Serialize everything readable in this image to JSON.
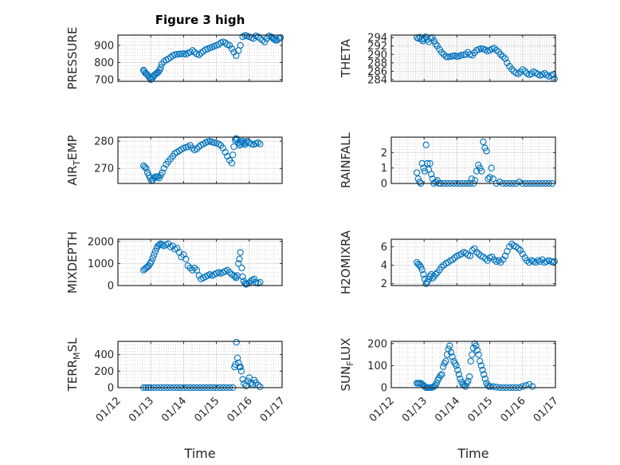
{
  "chart_data": {
    "type": "scatter",
    "title": "Figure 3 high",
    "marker_color": "#0072bd",
    "x_tick_labels": [
      "01/12",
      "01/13",
      "01/14",
      "01/15",
      "01/16",
      "01/17"
    ],
    "x_label": "Time",
    "panels": [
      {
        "ylabel": "PRESSURE",
        "ylim": [
          690,
          960
        ],
        "yticks": [
          700,
          800,
          900
        ],
        "x": [
          0.78,
          0.8,
          0.83,
          0.86,
          0.89,
          0.93,
          0.97,
          1.0,
          1.03,
          1.07,
          1.1,
          1.13,
          1.17,
          1.2,
          1.23,
          1.27,
          1.3,
          1.33,
          1.4,
          1.47,
          1.53,
          1.6,
          1.67,
          1.73,
          1.8,
          1.87,
          1.93,
          2.0,
          2.07,
          2.13,
          2.2,
          2.27,
          2.33,
          2.4,
          2.47,
          2.53,
          2.6,
          2.67,
          2.73,
          2.8,
          2.87,
          2.93,
          3.0,
          3.07,
          3.13,
          3.2,
          3.27,
          3.33,
          3.4,
          3.47,
          3.53,
          3.6,
          3.67,
          3.73,
          3.8,
          3.87,
          3.93,
          4.0,
          4.07,
          4.13,
          4.2,
          4.27,
          4.33,
          4.4,
          4.47,
          4.53,
          4.6,
          4.67,
          4.7,
          4.73,
          4.76,
          4.8,
          4.85,
          4.9,
          4.95
        ],
        "y": [
          755,
          750,
          740,
          735,
          730,
          720,
          710,
          700,
          705,
          715,
          725,
          730,
          735,
          740,
          745,
          755,
          770,
          790,
          805,
          815,
          820,
          830,
          840,
          845,
          848,
          850,
          850,
          852,
          848,
          855,
          860,
          870,
          860,
          850,
          845,
          855,
          865,
          875,
          880,
          885,
          890,
          895,
          900,
          905,
          915,
          920,
          915,
          905,
          900,
          880,
          860,
          840,
          870,
          900,
          950,
          958,
          955,
          950,
          945,
          940,
          955,
          950,
          940,
          930,
          920,
          940,
          955,
          950,
          945,
          940,
          935,
          930,
          930,
          940,
          945
        ]
      },
      {
        "ylabel": "THETA",
        "ylim": [
          283.6,
          294.6
        ],
        "yticks": [
          284,
          286,
          288,
          290,
          292,
          294
        ],
        "x": [
          0.78,
          0.83,
          0.87,
          0.92,
          0.96,
          1.0,
          1.05,
          1.1,
          1.15,
          1.2,
          1.25,
          1.3,
          1.35,
          1.4,
          1.47,
          1.53,
          1.6,
          1.67,
          1.73,
          1.8,
          1.87,
          1.93,
          2.0,
          2.07,
          2.13,
          2.2,
          2.27,
          2.33,
          2.4,
          2.47,
          2.53,
          2.6,
          2.67,
          2.73,
          2.8,
          2.87,
          2.93,
          3.0,
          3.07,
          3.13,
          3.2,
          3.27,
          3.33,
          3.4,
          3.47,
          3.53,
          3.6,
          3.67,
          3.73,
          3.8,
          3.87,
          3.93,
          4.0,
          4.07,
          4.13,
          4.2,
          4.27,
          4.33,
          4.4,
          4.47,
          4.53,
          4.6,
          4.67,
          4.73,
          4.8,
          4.87,
          4.93,
          4.97
        ],
        "y": [
          294.0,
          293.8,
          294.1,
          293.6,
          293.2,
          293.7,
          294.2,
          293.5,
          293.0,
          293.8,
          294.0,
          293.2,
          292.5,
          292.0,
          291.2,
          290.5,
          290.0,
          289.5,
          289.4,
          289.5,
          289.6,
          289.7,
          289.5,
          289.6,
          289.8,
          289.9,
          290.0,
          290.5,
          290.0,
          289.8,
          290.4,
          291.0,
          291.2,
          291.4,
          291.3,
          291.1,
          290.8,
          291.0,
          291.3,
          291.5,
          291.0,
          290.6,
          290.0,
          289.5,
          289.0,
          288.0,
          287.2,
          286.5,
          286.0,
          285.6,
          285.4,
          285.8,
          286.4,
          286.0,
          285.5,
          285.2,
          285.4,
          285.9,
          285.6,
          285.3,
          285.0,
          285.2,
          285.5,
          285.1,
          284.8,
          285.0,
          285.2,
          284.2
        ]
      },
      {
        "ylabel": "AIR_TEMP",
        "ylim": [
          264.5,
          281.5
        ],
        "yticks": [
          270,
          280
        ],
        "x": [
          0.78,
          0.82,
          0.86,
          0.9,
          0.94,
          0.98,
          1.02,
          1.06,
          1.1,
          1.14,
          1.18,
          1.22,
          1.26,
          1.3,
          1.35,
          1.4,
          1.47,
          1.53,
          1.6,
          1.67,
          1.73,
          1.8,
          1.87,
          1.93,
          2.0,
          2.07,
          2.13,
          2.2,
          2.27,
          2.33,
          2.4,
          2.47,
          2.53,
          2.6,
          2.67,
          2.73,
          2.8,
          2.87,
          2.93,
          3.0,
          3.07,
          3.13,
          3.2,
          3.27,
          3.33,
          3.4,
          3.47,
          3.5,
          3.53,
          3.57,
          3.6,
          3.63,
          3.67,
          3.7,
          3.73,
          3.77,
          3.8,
          3.83,
          3.87,
          3.9,
          3.93,
          4.0,
          4.07,
          4.13,
          4.2,
          4.27,
          4.33
        ],
        "y": [
          271.0,
          270.5,
          270.0,
          268.5,
          267.5,
          266.5,
          265.5,
          265.8,
          266.5,
          267.0,
          266.8,
          267.0,
          266.5,
          267.5,
          268.5,
          270.0,
          271.5,
          272.5,
          273.5,
          274.5,
          275.5,
          276.0,
          276.5,
          277.0,
          277.5,
          277.8,
          278.0,
          278.5,
          277.5,
          276.8,
          277.2,
          278.0,
          278.6,
          279.0,
          279.5,
          279.8,
          280.0,
          279.7,
          279.5,
          279.3,
          279.0,
          278.5,
          277.5,
          276.0,
          274.5,
          273.0,
          272.0,
          275.0,
          278.0,
          280.5,
          281.0,
          280.8,
          279.5,
          278.5,
          279.0,
          279.6,
          280.0,
          279.2,
          278.8,
          279.5,
          280.0,
          279.5,
          279.0,
          278.8,
          279.2,
          279.5,
          279.0
        ]
      },
      {
        "ylabel": "RAINFALL",
        "ylim": [
          0,
          3
        ],
        "yticks": [
          0,
          1,
          2
        ],
        "x": [
          0.78,
          0.82,
          0.86,
          0.9,
          0.94,
          0.98,
          1.02,
          1.06,
          1.1,
          1.14,
          1.18,
          1.22,
          1.26,
          1.3,
          1.35,
          1.4,
          1.45,
          1.5,
          1.6,
          1.7,
          1.8,
          1.9,
          2.0,
          2.1,
          2.2,
          2.3,
          2.4,
          2.45,
          2.5,
          2.55,
          2.6,
          2.65,
          2.7,
          2.75,
          2.8,
          2.85,
          2.9,
          2.95,
          3.0,
          3.05,
          3.1,
          3.2,
          3.3,
          3.4,
          3.5,
          3.6,
          3.7,
          3.8,
          3.9,
          4.0,
          4.1,
          4.2,
          4.3,
          4.4,
          4.5,
          4.6,
          4.7,
          4.8,
          4.9
        ],
        "y": [
          0.7,
          0.3,
          0.1,
          0,
          1.3,
          1.0,
          0.8,
          2.5,
          1.3,
          0.9,
          1.3,
          0.6,
          0.3,
          0,
          0.1,
          0.2,
          0,
          0,
          0,
          0,
          0,
          0,
          0,
          0,
          0,
          0,
          0,
          0.3,
          0,
          0.2,
          0.8,
          1.2,
          1.0,
          0.8,
          2.7,
          2.3,
          2.1,
          0.3,
          0.4,
          1.0,
          0.3,
          0,
          0.1,
          0,
          0,
          0,
          0,
          0,
          0.1,
          0,
          0,
          0,
          0,
          0,
          0,
          0,
          0,
          0,
          0
        ]
      },
      {
        "ylabel": "MIXDEPTH",
        "ylim": [
          0,
          2100
        ],
        "yticks": [
          0,
          1000,
          2000
        ],
        "x": [
          0.78,
          0.82,
          0.86,
          0.9,
          0.94,
          0.98,
          1.02,
          1.06,
          1.1,
          1.14,
          1.18,
          1.22,
          1.26,
          1.3,
          1.35,
          1.4,
          1.47,
          1.53,
          1.6,
          1.67,
          1.73,
          1.8,
          1.87,
          1.93,
          2.0,
          2.07,
          2.13,
          2.2,
          2.27,
          2.33,
          2.4,
          2.47,
          2.53,
          2.6,
          2.67,
          2.73,
          2.8,
          2.87,
          2.93,
          3.0,
          3.07,
          3.13,
          3.2,
          3.27,
          3.33,
          3.4,
          3.47,
          3.53,
          3.57,
          3.6,
          3.63,
          3.67,
          3.7,
          3.73,
          3.77,
          3.8,
          3.83,
          3.87,
          3.9,
          3.93,
          4.0,
          4.05,
          4.1,
          4.15,
          4.2,
          4.27,
          4.33
        ],
        "y": [
          700,
          750,
          800,
          850,
          900,
          1000,
          1100,
          1250,
          1400,
          1550,
          1700,
          1800,
          1850,
          1900,
          1850,
          1800,
          1850,
          1900,
          1750,
          1800,
          1650,
          1700,
          1500,
          1300,
          1400,
          1200,
          900,
          800,
          700,
          800,
          700,
          450,
          300,
          350,
          400,
          450,
          500,
          450,
          500,
          550,
          600,
          550,
          600,
          650,
          700,
          600,
          500,
          450,
          400,
          350,
          450,
          1000,
          1200,
          1500,
          800,
          400,
          200,
          100,
          50,
          80,
          120,
          200,
          250,
          300,
          150,
          100,
          150
        ]
      },
      {
        "ylabel": "H2OMIXRA",
        "ylim": [
          1.8,
          6.8
        ],
        "yticks": [
          2,
          4,
          6
        ],
        "x": [
          0.78,
          0.82,
          0.86,
          0.9,
          0.94,
          0.98,
          1.02,
          1.06,
          1.1,
          1.14,
          1.18,
          1.22,
          1.26,
          1.3,
          1.35,
          1.4,
          1.47,
          1.53,
          1.6,
          1.67,
          1.73,
          1.8,
          1.87,
          1.93,
          2.0,
          2.07,
          2.13,
          2.2,
          2.27,
          2.33,
          2.4,
          2.47,
          2.53,
          2.6,
          2.67,
          2.73,
          2.8,
          2.87,
          2.93,
          3.0,
          3.07,
          3.13,
          3.2,
          3.27,
          3.33,
          3.4,
          3.47,
          3.53,
          3.6,
          3.67,
          3.73,
          3.8,
          3.87,
          3.93,
          4.0,
          4.07,
          4.13,
          4.2,
          4.27,
          4.33,
          4.4,
          4.47,
          4.53,
          4.6,
          4.67,
          4.73,
          4.8,
          4.87,
          4.93,
          4.97
        ],
        "y": [
          4.3,
          4.1,
          4.0,
          3.8,
          3.5,
          3.0,
          2.5,
          2.0,
          2.2,
          2.5,
          2.8,
          3.0,
          2.6,
          2.8,
          3.0,
          3.2,
          3.5,
          3.8,
          4.0,
          4.2,
          4.3,
          4.5,
          4.6,
          4.8,
          5.0,
          5.1,
          5.2,
          5.4,
          5.3,
          5.1,
          5.0,
          5.6,
          5.8,
          5.4,
          5.2,
          5.0,
          4.9,
          4.7,
          4.5,
          4.8,
          4.9,
          4.6,
          4.4,
          4.5,
          4.3,
          4.6,
          5.0,
          5.5,
          6.0,
          6.3,
          6.1,
          6.0,
          5.8,
          5.6,
          5.2,
          4.8,
          4.5,
          4.3,
          4.5,
          4.4,
          4.3,
          4.5,
          4.4,
          4.6,
          4.3,
          4.4,
          4.5,
          4.4,
          4.3,
          4.4
        ]
      },
      {
        "ylabel": "TERR_MSL",
        "ylim": [
          0,
          560
        ],
        "yticks": [
          0,
          200,
          400
        ],
        "x": [
          0.78,
          0.85,
          0.92,
          1.0,
          1.1,
          1.2,
          1.3,
          1.4,
          1.5,
          1.6,
          1.7,
          1.8,
          1.9,
          2.0,
          2.1,
          2.2,
          2.3,
          2.4,
          2.5,
          2.6,
          2.7,
          2.8,
          2.9,
          3.0,
          3.1,
          3.2,
          3.3,
          3.4,
          3.5,
          3.55,
          3.58,
          3.61,
          3.64,
          3.67,
          3.7,
          3.73,
          3.76,
          3.8,
          3.85,
          3.9,
          3.95,
          4.0,
          4.05,
          4.1,
          4.15,
          4.2,
          4.27,
          4.33
        ],
        "y": [
          0,
          0,
          0,
          0,
          0,
          0,
          0,
          0,
          0,
          0,
          0,
          0,
          0,
          0,
          0,
          0,
          0,
          0,
          0,
          0,
          0,
          0,
          0,
          0,
          0,
          0,
          0,
          0,
          0,
          250,
          280,
          550,
          360,
          300,
          250,
          250,
          200,
          100,
          50,
          20,
          80,
          120,
          60,
          40,
          90,
          60,
          30,
          10
        ]
      },
      {
        "ylabel": "SUN_FLUX",
        "ylim": [
          0,
          210
        ],
        "yticks": [
          0,
          100,
          200
        ],
        "x": [
          0.78,
          0.82,
          0.86,
          0.9,
          0.94,
          0.98,
          1.02,
          1.06,
          1.1,
          1.14,
          1.18,
          1.22,
          1.26,
          1.3,
          1.34,
          1.38,
          1.42,
          1.46,
          1.5,
          1.54,
          1.58,
          1.62,
          1.66,
          1.7,
          1.74,
          1.78,
          1.82,
          1.86,
          1.9,
          1.94,
          1.98,
          2.02,
          2.06,
          2.1,
          2.14,
          2.18,
          2.22,
          2.26,
          2.3,
          2.34,
          2.38,
          2.42,
          2.46,
          2.5,
          2.54,
          2.58,
          2.62,
          2.66,
          2.7,
          2.74,
          2.78,
          2.82,
          2.86,
          2.9,
          2.94,
          2.98,
          3.02,
          3.1,
          3.2,
          3.3,
          3.4,
          3.5,
          3.6,
          3.7,
          3.8,
          3.9,
          4.0,
          4.1,
          4.2,
          4.3
        ],
        "y": [
          20,
          20,
          20,
          20,
          15,
          10,
          5,
          0,
          0,
          0,
          0,
          0,
          2,
          5,
          10,
          20,
          35,
          45,
          55,
          60,
          95,
          110,
          120,
          150,
          175,
          190,
          160,
          140,
          120,
          110,
          100,
          80,
          60,
          40,
          25,
          15,
          10,
          5,
          20,
          30,
          50,
          120,
          150,
          180,
          200,
          190,
          170,
          150,
          120,
          100,
          80,
          60,
          40,
          20,
          10,
          5,
          5,
          5,
          2,
          0,
          0,
          0,
          0,
          0,
          0,
          0,
          5,
          10,
          15,
          5
        ]
      }
    ]
  }
}
